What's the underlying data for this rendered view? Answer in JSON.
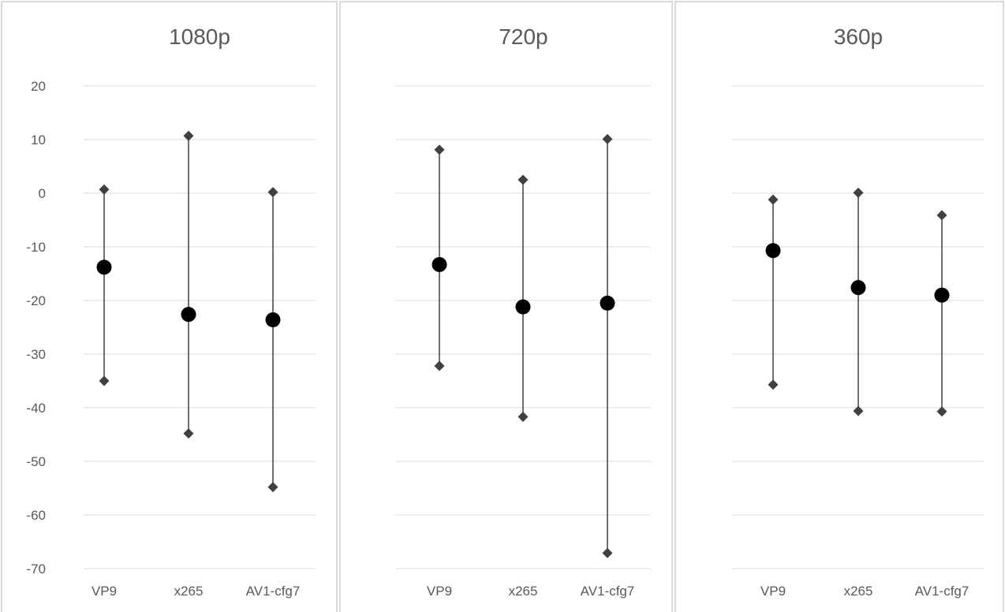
{
  "chart_data": [
    {
      "type": "scatter",
      "title": "1080p",
      "categories": [
        "VP9",
        "x265",
        "AV1-cfg7"
      ],
      "ylim": [
        -70,
        20
      ],
      "yticks": [
        20,
        10,
        0,
        -10,
        -20,
        -30,
        -40,
        -50,
        -60,
        -70
      ],
      "grid": true,
      "series": [
        {
          "values": [
            0.7,
            10.7,
            0.2
          ]
        },
        {
          "values": [
            -35,
            -44.8,
            -54.8
          ]
        },
        {
          "values": [
            -13.8,
            -22.6,
            -23.6
          ]
        }
      ]
    },
    {
      "type": "scatter",
      "title": "720p",
      "categories": [
        "VP9",
        "x265",
        "AV1-cfg7"
      ],
      "ylim": [
        -70,
        20
      ],
      "grid": true,
      "series": [
        {
          "values": [
            8.1,
            2.5,
            10.1
          ]
        },
        {
          "values": [
            -32.2,
            -41.7,
            -67.1
          ]
        },
        {
          "values": [
            -13.3,
            -21.2,
            -20.5
          ]
        }
      ]
    },
    {
      "type": "scatter",
      "title": "360p",
      "categories": [
        "VP9",
        "x265",
        "AV1-cfg7"
      ],
      "ylim": [
        -70,
        20
      ],
      "grid": true,
      "series": [
        {
          "values": [
            -1.2,
            0.1,
            -4.1
          ]
        },
        {
          "values": [
            -35.7,
            -40.6,
            -40.7
          ]
        },
        {
          "values": [
            -10.7,
            -17.6,
            -19
          ]
        }
      ]
    }
  ],
  "colors": {
    "marker": "#404040",
    "mean": "#000000",
    "grid": "#d9d9d9",
    "text": "#595959",
    "border": "#d9d9d9"
  }
}
